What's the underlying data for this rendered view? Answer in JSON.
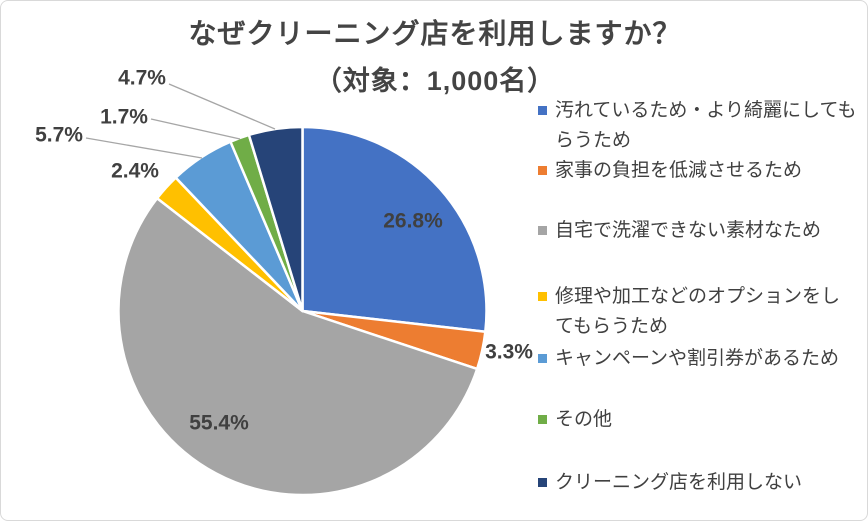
{
  "chart": {
    "title": "なぜクリーニング店を利用しますか？",
    "subtitle": "（対象：1,000名）"
  },
  "chart_data": {
    "type": "pie",
    "title": "なぜクリーニング店を利用しますか？",
    "subtitle": "（対象：1,000名）",
    "sample_size_note": "対象：1,000名",
    "categories": [
      "汚れているため・より綺麗にしてもらうため",
      "家事の負担を低減させるため",
      "自宅で洗濯できない素材なため",
      "修理や加工などのオプションをしてもらうため",
      "キャンペーンや割引券があるため",
      "その他",
      "クリーニング店を利用しない"
    ],
    "values": [
      26.8,
      3.3,
      55.4,
      2.4,
      5.7,
      1.7,
      4.7
    ],
    "labels": [
      "26.8%",
      "3.3%",
      "55.4%",
      "2.4%",
      "5.7%",
      "1.7%",
      "4.7%"
    ],
    "colors": [
      "#4472C4",
      "#ED7D31",
      "#A5A5A5",
      "#FFC000",
      "#5B9BD5",
      "#70AD47",
      "#264478"
    ],
    "start_angle_deg": 0,
    "direction": "clockwise",
    "legend_position": "right",
    "slice_border_color": "#FFFFFF",
    "leader_line_color": "#A6A6A6",
    "label_text_color": "#404040"
  },
  "legend": {
    "items": [
      {
        "label": "汚れているため・より綺麗にしてもらうため",
        "color": "#4472C4"
      },
      {
        "label": "家事の負担を低減させるため",
        "color": "#ED7D31"
      },
      {
        "label": "自宅で洗濯できない素材なため",
        "color": "#A5A5A5"
      },
      {
        "label": "修理や加工などのオプションをしてもらうため",
        "color": "#FFC000"
      },
      {
        "label": "キャンペーンや割引券があるため",
        "color": "#5B9BD5"
      },
      {
        "label": "その他",
        "color": "#70AD47"
      },
      {
        "label": "クリーニング店を利用しない",
        "color": "#264478"
      }
    ]
  }
}
